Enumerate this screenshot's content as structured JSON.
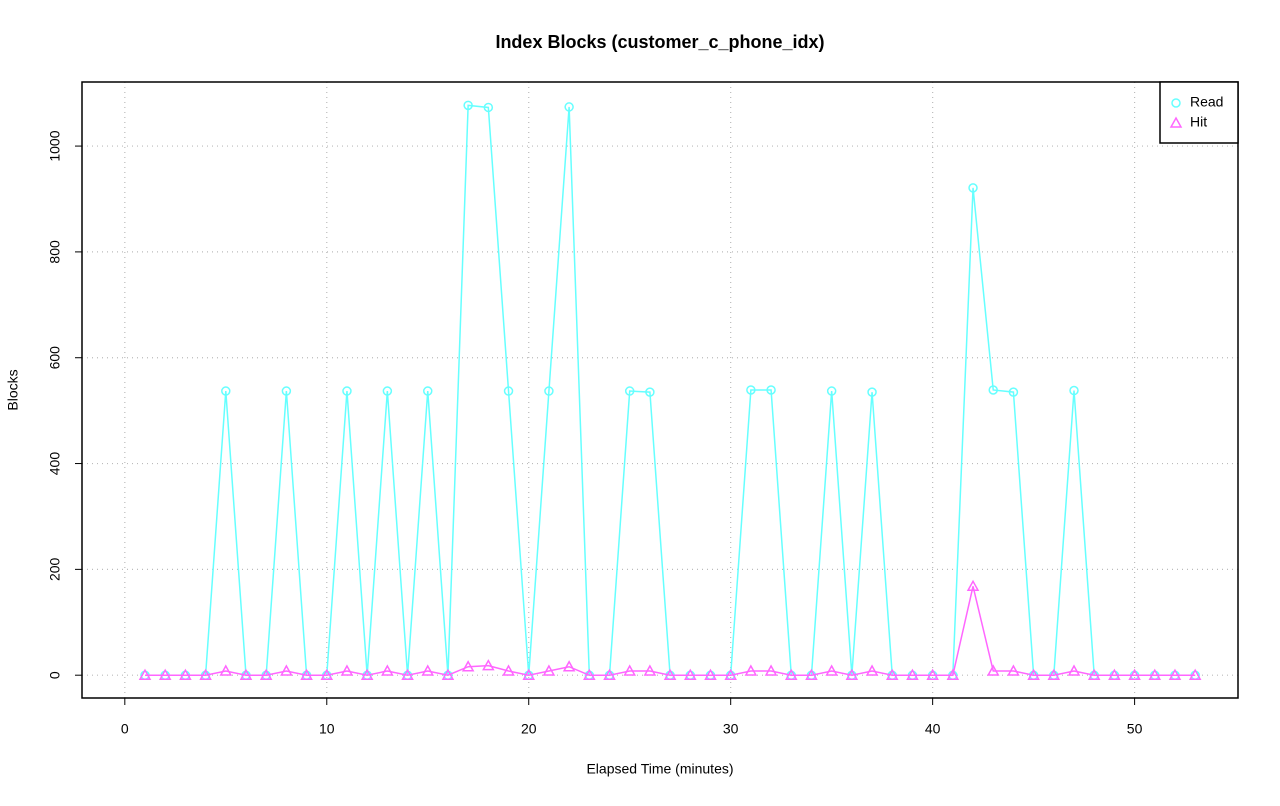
{
  "chart_data": {
    "type": "line",
    "title": "Index Blocks (customer_c_phone_idx)",
    "x_label": "Elapsed Time (minutes)",
    "y_label": "Blocks",
    "x": [
      1,
      2,
      3,
      4,
      5,
      6,
      7,
      8,
      9,
      10,
      11,
      12,
      13,
      14,
      15,
      16,
      17,
      18,
      19,
      20,
      21,
      22,
      23,
      24,
      25,
      26,
      27,
      28,
      29,
      30,
      31,
      32,
      33,
      34,
      35,
      36,
      37,
      38,
      39,
      40,
      41,
      42,
      43,
      44,
      45,
      46,
      47,
      48,
      49,
      50,
      51,
      52,
      53
    ],
    "series": [
      {
        "name": "Read",
        "color": "#66ffff",
        "marker": "circle",
        "values": [
          0,
          0,
          0,
          0,
          537,
          0,
          0,
          537,
          0,
          0,
          537,
          0,
          537,
          0,
          537,
          0,
          1077,
          1073,
          537,
          0,
          537,
          1074,
          0,
          0,
          537,
          535,
          0,
          0,
          0,
          0,
          539,
          539,
          0,
          0,
          537,
          0,
          535,
          0,
          0,
          0,
          0,
          921,
          539,
          535,
          0,
          0,
          538,
          0,
          0,
          0,
          0,
          0,
          0
        ]
      },
      {
        "name": "Hit",
        "color": "#ff66ff",
        "marker": "triangle",
        "values": [
          0,
          0,
          0,
          0,
          8,
          0,
          0,
          8,
          0,
          0,
          8,
          0,
          8,
          0,
          8,
          0,
          16,
          18,
          8,
          0,
          8,
          16,
          0,
          0,
          8,
          8,
          0,
          0,
          0,
          0,
          8,
          8,
          0,
          0,
          8,
          0,
          8,
          0,
          0,
          0,
          0,
          168,
          8,
          8,
          0,
          0,
          8,
          0,
          0,
          0,
          0,
          0,
          0
        ]
      }
    ],
    "xlim": [
      -2.12,
      55.12
    ],
    "ylim": [
      -43.1,
      1121.1
    ],
    "xticks": [
      0,
      10,
      20,
      30,
      40,
      50
    ],
    "yticks": [
      0,
      200,
      400,
      600,
      800,
      1000
    ],
    "grid": true,
    "legend": "top-right"
  }
}
